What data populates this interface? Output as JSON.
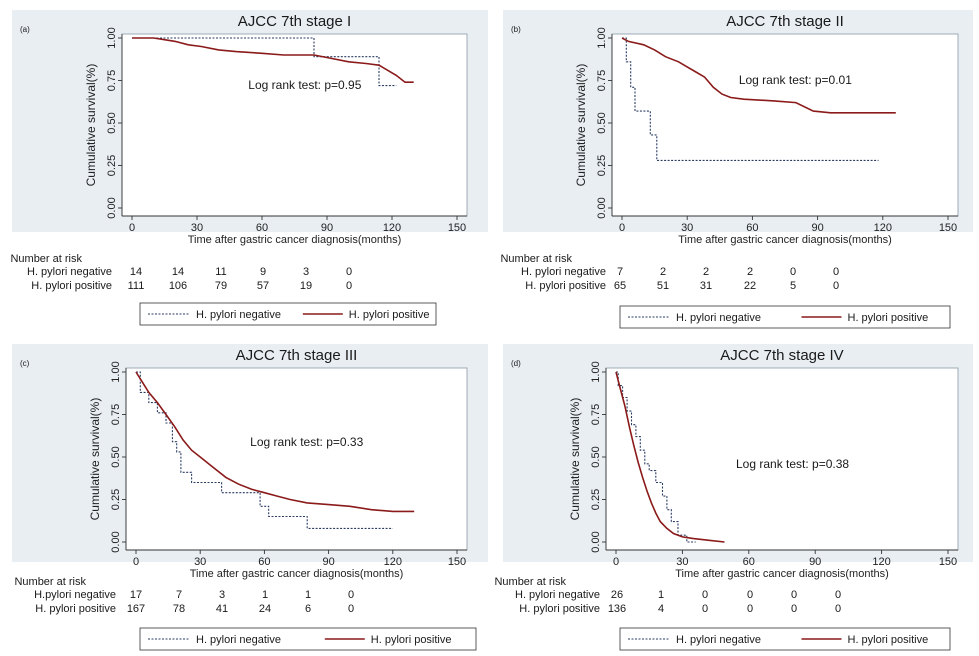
{
  "figure": {
    "background": "#e8eef2",
    "negative_color": "#2b3d63",
    "positive_color": "#8b1a1a"
  },
  "chart_data": [
    {
      "type": "line",
      "panel_label": "(a)",
      "title": "AJCC 7th stage I",
      "xlabel": "Time after gastric cancer diagnosis(months)",
      "ylabel": "Cumulative survival(%)",
      "xlim": [
        0,
        150
      ],
      "ylim": [
        0,
        1
      ],
      "xticks": [
        "0",
        "30",
        "60",
        "90",
        "120",
        "150"
      ],
      "yticks": [
        "0.00",
        "0.25",
        "0.50",
        "0.75",
        "1.00"
      ],
      "annotation": "Log rank test: p=0.95",
      "risk_header": "Number at risk",
      "risk_rows": [
        {
          "label": "H. pylori negative",
          "values": [
            "14",
            "14",
            "11",
            "9",
            "3",
            "0"
          ]
        },
        {
          "label": "H. pylori positive",
          "values": [
            "111",
            "106",
            "79",
            "57",
            "19",
            "0"
          ]
        }
      ],
      "series": [
        {
          "name": "H. pylori negative",
          "style": "dashed",
          "points": [
            [
              0,
              1.0
            ],
            [
              84,
              1.0
            ],
            [
              84,
              0.89
            ],
            [
              114,
              0.89
            ],
            [
              114,
              0.72
            ],
            [
              122,
              0.72
            ]
          ]
        },
        {
          "name": "H. pylori positive",
          "style": "solid",
          "points": [
            [
              0,
              1.0
            ],
            [
              10,
              1.0
            ],
            [
              15,
              0.99
            ],
            [
              20,
              0.98
            ],
            [
              26,
              0.96
            ],
            [
              32,
              0.95
            ],
            [
              40,
              0.93
            ],
            [
              48,
              0.92
            ],
            [
              60,
              0.91
            ],
            [
              70,
              0.9
            ],
            [
              84,
              0.9
            ],
            [
              92,
              0.88
            ],
            [
              100,
              0.86
            ],
            [
              108,
              0.85
            ],
            [
              114,
              0.84
            ],
            [
              118,
              0.81
            ],
            [
              122,
              0.78
            ],
            [
              126,
              0.74
            ],
            [
              130,
              0.74
            ]
          ]
        }
      ]
    },
    {
      "type": "line",
      "panel_label": "(b)",
      "title": "AJCC 7th stage II",
      "xlabel": "Time after gastric cancer diagnosis(months)",
      "ylabel": "Cumulative survival(%)",
      "xlim": [
        0,
        150
      ],
      "ylim": [
        0,
        1
      ],
      "xticks": [
        "0",
        "30",
        "60",
        "90",
        "120",
        "150"
      ],
      "yticks": [
        "0.00",
        "0.25",
        "0.50",
        "0.75",
        "1.00"
      ],
      "annotation": "Log rank test: p=0.01",
      "risk_header": "Number at risk",
      "risk_rows": [
        {
          "label": "H. pylori negative",
          "values": [
            "7",
            "2",
            "2",
            "2",
            "0",
            "0"
          ]
        },
        {
          "label": "H. pylori positive",
          "values": [
            "65",
            "51",
            "31",
            "22",
            "5",
            "0"
          ]
        }
      ],
      "series": [
        {
          "name": "H. pylori negative",
          "style": "dashed",
          "points": [
            [
              0,
              1.0
            ],
            [
              2,
              1.0
            ],
            [
              2,
              0.86
            ],
            [
              4,
              0.86
            ],
            [
              4,
              0.71
            ],
            [
              6,
              0.71
            ],
            [
              6,
              0.57
            ],
            [
              13,
              0.57
            ],
            [
              13,
              0.43
            ],
            [
              16,
              0.43
            ],
            [
              16,
              0.28
            ],
            [
              118,
              0.28
            ]
          ]
        },
        {
          "name": "H. pylori positive",
          "style": "solid",
          "points": [
            [
              0,
              1.0
            ],
            [
              3,
              0.98
            ],
            [
              10,
              0.96
            ],
            [
              15,
              0.93
            ],
            [
              20,
              0.89
            ],
            [
              26,
              0.86
            ],
            [
              30,
              0.83
            ],
            [
              34,
              0.8
            ],
            [
              38,
              0.77
            ],
            [
              42,
              0.71
            ],
            [
              46,
              0.67
            ],
            [
              50,
              0.65
            ],
            [
              56,
              0.64
            ],
            [
              70,
              0.63
            ],
            [
              80,
              0.62
            ],
            [
              88,
              0.57
            ],
            [
              96,
              0.56
            ],
            [
              126,
              0.56
            ]
          ]
        }
      ]
    },
    {
      "type": "line",
      "panel_label": "(c)",
      "title": "AJCC 7th stage III",
      "xlabel": "Time after gastric cancer diagnosis(months)",
      "ylabel": "Cumulative survival(%)",
      "xlim": [
        0,
        150
      ],
      "ylim": [
        0,
        1
      ],
      "xticks": [
        "0",
        "30",
        "60",
        "90",
        "120",
        "150"
      ],
      "yticks": [
        "0.00",
        "0.25",
        "0.50",
        "0.75",
        "1.00"
      ],
      "annotation": "Log rank test: p=0.33",
      "risk_header": "Number at risk",
      "risk_rows": [
        {
          "label": "H.pylori negative",
          "values": [
            "17",
            "7",
            "3",
            "1",
            "1",
            "0"
          ]
        },
        {
          "label": "H. pylori positive",
          "values": [
            "167",
            "78",
            "41",
            "24",
            "6",
            "0"
          ]
        }
      ],
      "series": [
        {
          "name": "H. pylori negative",
          "style": "dashed",
          "points": [
            [
              0,
              1.0
            ],
            [
              2,
              1.0
            ],
            [
              2,
              0.88
            ],
            [
              6,
              0.88
            ],
            [
              6,
              0.82
            ],
            [
              10,
              0.82
            ],
            [
              10,
              0.76
            ],
            [
              14,
              0.76
            ],
            [
              14,
              0.7
            ],
            [
              17,
              0.7
            ],
            [
              17,
              0.59
            ],
            [
              19,
              0.59
            ],
            [
              19,
              0.53
            ],
            [
              21,
              0.53
            ],
            [
              21,
              0.41
            ],
            [
              26,
              0.41
            ],
            [
              26,
              0.35
            ],
            [
              40,
              0.35
            ],
            [
              40,
              0.29
            ],
            [
              58,
              0.29
            ],
            [
              58,
              0.21
            ],
            [
              62,
              0.21
            ],
            [
              62,
              0.15
            ],
            [
              80,
              0.15
            ],
            [
              80,
              0.08
            ],
            [
              120,
              0.08
            ]
          ]
        },
        {
          "name": "H. pylori positive",
          "style": "solid",
          "points": [
            [
              0,
              1.0
            ],
            [
              3,
              0.94
            ],
            [
              6,
              0.88
            ],
            [
              10,
              0.82
            ],
            [
              14,
              0.75
            ],
            [
              18,
              0.68
            ],
            [
              22,
              0.6
            ],
            [
              26,
              0.54
            ],
            [
              30,
              0.5
            ],
            [
              36,
              0.44
            ],
            [
              42,
              0.38
            ],
            [
              48,
              0.34
            ],
            [
              54,
              0.31
            ],
            [
              60,
              0.29
            ],
            [
              66,
              0.27
            ],
            [
              72,
              0.25
            ],
            [
              80,
              0.23
            ],
            [
              90,
              0.22
            ],
            [
              100,
              0.21
            ],
            [
              110,
              0.19
            ],
            [
              120,
              0.18
            ],
            [
              130,
              0.18
            ]
          ]
        }
      ]
    },
    {
      "type": "line",
      "panel_label": "(d)",
      "title": "AJCC 7th stage IV",
      "xlabel": "Time after gastric cancer diagnosis(months)",
      "ylabel": "Cumulative survival(%)",
      "xlim": [
        0,
        150
      ],
      "ylim": [
        0,
        1
      ],
      "xticks": [
        "0",
        "30",
        "60",
        "90",
        "120",
        "150"
      ],
      "yticks": [
        "0.00",
        "0.25",
        "0.50",
        "0.75",
        "1.00"
      ],
      "annotation": "Log rank test: p=0.38",
      "risk_header": "Number at risk",
      "risk_rows": [
        {
          "label": "H. pylori negative",
          "values": [
            "26",
            "1",
            "0",
            "0",
            "0",
            "0"
          ]
        },
        {
          "label": "H. pylori positive",
          "values": [
            "136",
            "4",
            "0",
            "0",
            "0",
            "0"
          ]
        }
      ],
      "series": [
        {
          "name": "H. pylori negative",
          "style": "dashed",
          "points": [
            [
              0,
              1.0
            ],
            [
              1,
              1.0
            ],
            [
              1,
              0.92
            ],
            [
              3,
              0.92
            ],
            [
              3,
              0.85
            ],
            [
              5,
              0.85
            ],
            [
              5,
              0.77
            ],
            [
              7,
              0.77
            ],
            [
              7,
              0.69
            ],
            [
              9,
              0.69
            ],
            [
              9,
              0.62
            ],
            [
              11,
              0.62
            ],
            [
              11,
              0.54
            ],
            [
              13,
              0.54
            ],
            [
              13,
              0.46
            ],
            [
              15,
              0.46
            ],
            [
              15,
              0.42
            ],
            [
              18,
              0.42
            ],
            [
              18,
              0.35
            ],
            [
              21,
              0.35
            ],
            [
              21,
              0.27
            ],
            [
              23,
              0.27
            ],
            [
              23,
              0.19
            ],
            [
              25,
              0.19
            ],
            [
              25,
              0.12
            ],
            [
              28,
              0.12
            ],
            [
              28,
              0.04
            ],
            [
              32,
              0.04
            ],
            [
              32,
              0.0
            ],
            [
              36,
              0.0
            ]
          ]
        },
        {
          "name": "H. pylori positive",
          "style": "solid",
          "points": [
            [
              0,
              1.0
            ],
            [
              2,
              0.9
            ],
            [
              4,
              0.8
            ],
            [
              6,
              0.68
            ],
            [
              8,
              0.57
            ],
            [
              10,
              0.47
            ],
            [
              12,
              0.38
            ],
            [
              14,
              0.3
            ],
            [
              16,
              0.23
            ],
            [
              18,
              0.17
            ],
            [
              20,
              0.12
            ],
            [
              23,
              0.08
            ],
            [
              26,
              0.05
            ],
            [
              30,
              0.03
            ],
            [
              35,
              0.02
            ],
            [
              42,
              0.01
            ],
            [
              49,
              0.0
            ]
          ]
        }
      ]
    }
  ],
  "legend": {
    "negative_label": "H. pylori negative",
    "positive_label": "H. pylori positive"
  }
}
